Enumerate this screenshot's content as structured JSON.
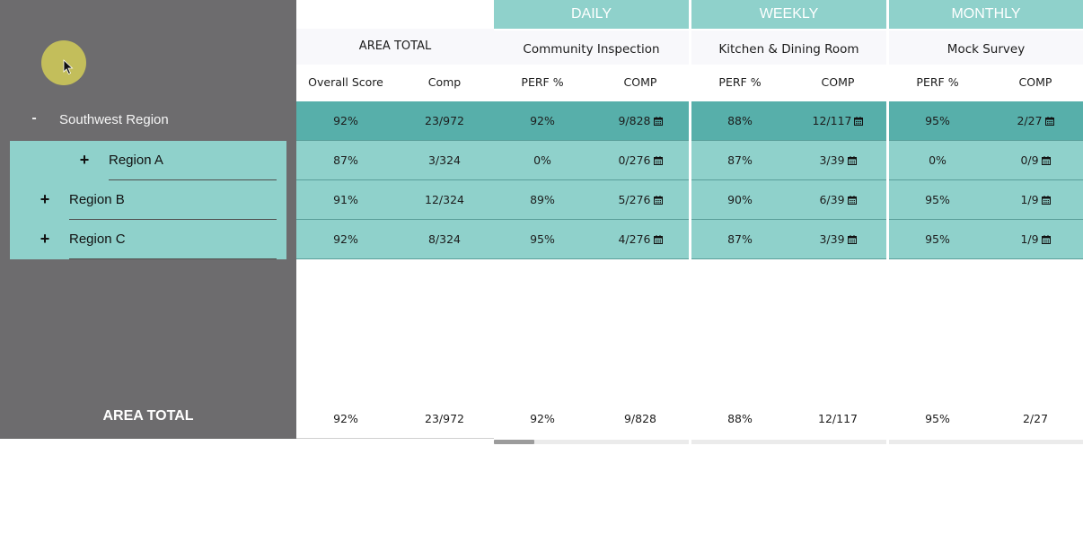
{
  "tree": {
    "region": {
      "toggle": "-",
      "label": "Southwest Region"
    },
    "subregions": [
      {
        "toggle": "+",
        "label": "Region A"
      },
      {
        "toggle": "+",
        "label": "Region B"
      },
      {
        "toggle": "+",
        "label": "Region C"
      }
    ],
    "total_label": "AREA TOTAL"
  },
  "groups": [
    {
      "label": "DAILY",
      "subtitle": "Community Inspection"
    },
    {
      "label": "WEEKLY",
      "subtitle": "Kitchen & Dining Room"
    },
    {
      "label": "MONTHLY",
      "subtitle": "Mock Survey"
    }
  ],
  "area_header": "AREA TOTAL",
  "columns": {
    "overall": "Overall Score",
    "comp": "Comp",
    "perf": "PERF %",
    "comp_caps": "COMP"
  },
  "rows": [
    {
      "overall": "92%",
      "comp": "23/972",
      "daily_perf": "92%",
      "daily_comp": "9/828",
      "weekly_perf": "88%",
      "weekly_comp": "12/117",
      "monthly_perf": "95%",
      "monthly_comp": "2/27"
    },
    {
      "overall": "87%",
      "comp": "3/324",
      "daily_perf": "0%",
      "daily_comp": "0/276",
      "weekly_perf": "87%",
      "weekly_comp": "3/39",
      "monthly_perf": "0%",
      "monthly_comp": "0/9"
    },
    {
      "overall": "91%",
      "comp": "12/324",
      "daily_perf": "89%",
      "daily_comp": "5/276",
      "weekly_perf": "90%",
      "weekly_comp": "6/39",
      "monthly_perf": "95%",
      "monthly_comp": "1/9"
    },
    {
      "overall": "92%",
      "comp": "8/324",
      "daily_perf": "95%",
      "daily_comp": "4/276",
      "weekly_perf": "87%",
      "weekly_comp": "3/39",
      "monthly_perf": "95%",
      "monthly_comp": "1/9"
    }
  ],
  "totals": {
    "overall": "92%",
    "comp": "23/972",
    "daily_perf": "92%",
    "daily_comp": "9/828",
    "weekly_perf": "88%",
    "weekly_comp": "12/117",
    "monthly_perf": "95%",
    "monthly_comp": "2/27"
  },
  "colors": {
    "sidebar": "#6d6c6e",
    "teal_light": "#8fd1cb",
    "teal_dark": "#57afaa",
    "cursor": "#c8c35a"
  },
  "icons": {
    "calendar": "calendar-icon",
    "cursor": "mouse-cursor-icon"
  }
}
